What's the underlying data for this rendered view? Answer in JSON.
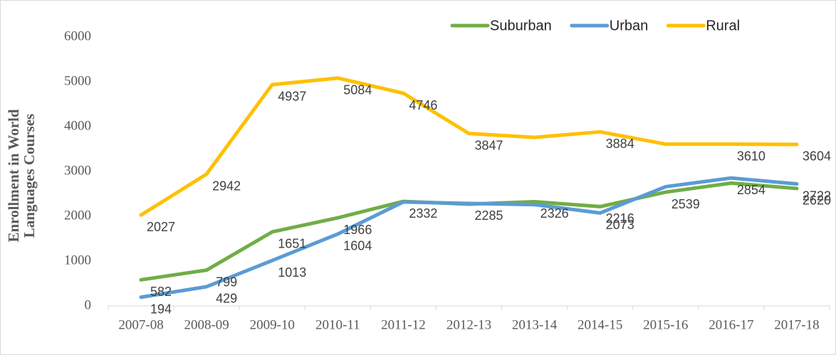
{
  "chart_data": {
    "type": "line",
    "y_label": "Enrollment in World Languages Courses",
    "categories": [
      "2007-08",
      "2008-09",
      "2009-10",
      "2010-11",
      "2011-12",
      "2012-13",
      "2013-14",
      "2014-15",
      "2015-16",
      "2016-17",
      "2017-18"
    ],
    "series": [
      {
        "name": "Suburban",
        "color": "#70ad47",
        "values": [
          582,
          799,
          1651,
          1966,
          2332,
          2270,
          2326,
          2216,
          2539,
          2740,
          2620
        ],
        "value_labels": [
          "582",
          "799",
          "1651",
          "1966",
          "2332",
          null,
          "2326",
          "2216",
          "2539",
          null,
          "2620"
        ]
      },
      {
        "name": "Urban",
        "color": "#5b9bd5",
        "values": [
          194,
          429,
          1013,
          1604,
          2320,
          2285,
          2260,
          2073,
          2660,
          2854,
          2722
        ],
        "value_labels": [
          "194",
          "429",
          "1013",
          "1604",
          null,
          "2285",
          null,
          "2073",
          null,
          "2854",
          "2722"
        ]
      },
      {
        "name": "Rural",
        "color": "#ffc000",
        "values": [
          2027,
          2942,
          4937,
          5084,
          4746,
          3847,
          3760,
          3884,
          3610,
          3610,
          3604
        ],
        "value_labels": [
          "2027",
          "2942",
          "4937",
          "5084",
          "4746",
          "3847",
          null,
          "3884",
          null,
          "3610",
          "3604"
        ]
      }
    ],
    "ylim": [
      0,
      6000
    ],
    "yticks": [
      0,
      1000,
      2000,
      3000,
      4000,
      5000,
      6000
    ],
    "legend": "top-right"
  }
}
